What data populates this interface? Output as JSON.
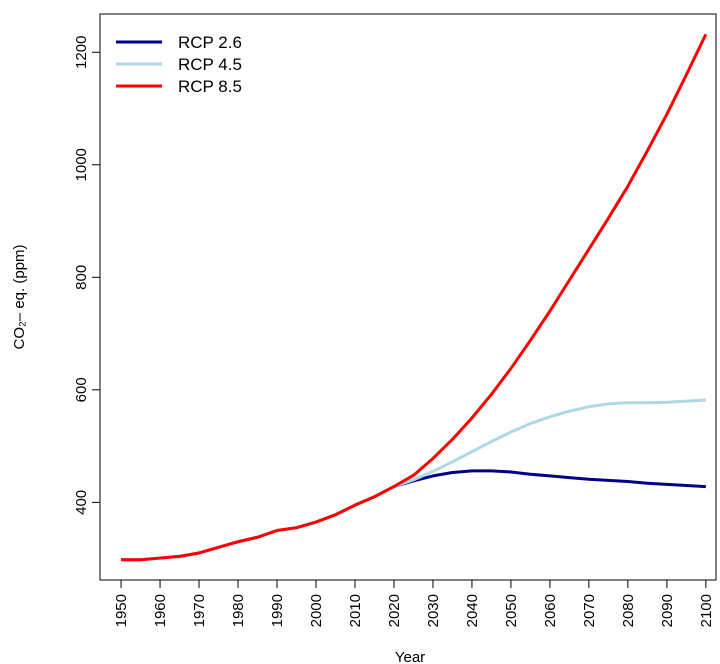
{
  "chart_data": {
    "type": "line",
    "xlabel": "Year",
    "ylabel": "CO₂– eq. (ppm)",
    "x": [
      1950,
      1955,
      1960,
      1965,
      1970,
      1975,
      1980,
      1985,
      1990,
      1995,
      2000,
      2005,
      2010,
      2015,
      2020,
      2025,
      2030,
      2035,
      2040,
      2045,
      2050,
      2055,
      2060,
      2065,
      2070,
      2075,
      2080,
      2085,
      2090,
      2095,
      2100
    ],
    "series": [
      {
        "name": "RCP 2.6",
        "color": "#00008b",
        "values": [
          298,
          298,
          301,
          304,
          310,
          320,
          330,
          338,
          350,
          355,
          365,
          378,
          395,
          410,
          428,
          438,
          447,
          453,
          456,
          456,
          454,
          450,
          447,
          444,
          441,
          439,
          437,
          434,
          432,
          430,
          428
        ]
      },
      {
        "name": "RCP 4.5",
        "color": "#add8e6",
        "values": [
          298,
          298,
          301,
          304,
          310,
          320,
          330,
          338,
          350,
          355,
          365,
          378,
          395,
          410,
          428,
          440,
          455,
          472,
          490,
          508,
          525,
          540,
          552,
          562,
          570,
          575,
          577,
          577,
          578,
          580,
          582
        ]
      },
      {
        "name": "RCP 8.5",
        "color": "#ff0000",
        "values": [
          298,
          298,
          301,
          304,
          310,
          320,
          330,
          338,
          350,
          355,
          365,
          378,
          395,
          410,
          428,
          448,
          478,
          512,
          550,
          592,
          638,
          688,
          740,
          795,
          850,
          905,
          962,
          1025,
          1090,
          1160,
          1232
        ]
      }
    ],
    "xlim": [
      1944.6,
      2102.6
    ],
    "ylim": [
      262,
      1268
    ],
    "xticks": [
      1950,
      1960,
      1970,
      1980,
      1990,
      2000,
      2010,
      2020,
      2030,
      2040,
      2050,
      2060,
      2070,
      2080,
      2090,
      2100
    ],
    "yticks": [
      400,
      600,
      800,
      1000,
      1200
    ],
    "legend": "top-left"
  }
}
